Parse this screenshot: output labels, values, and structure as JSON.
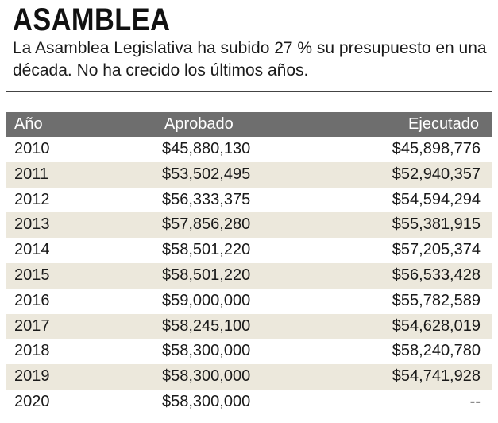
{
  "title": "ASAMBLEA",
  "subtitle": "La Asamblea Legislativa ha subido 27 % su presupuesto en una década. No ha crecido los últimos años.",
  "table": {
    "headers": [
      "Año",
      "Aprobado",
      "Ejecutado"
    ],
    "rows": [
      [
        "2010",
        "$45,880,130",
        "$45,898,776"
      ],
      [
        "2011",
        "$53,502,495",
        "$52,940,357"
      ],
      [
        "2012",
        "$56,333,375",
        "$54,594,294"
      ],
      [
        "2013",
        "$57,856,280",
        "$55,381,915"
      ],
      [
        "2014",
        "$58,501,220",
        "$57,205,374"
      ],
      [
        "2015",
        "$58,501,220",
        "$56,533,428"
      ],
      [
        "2016",
        "$59,000,000",
        "$55,782,589"
      ],
      [
        "2017",
        "$58,245,100",
        "$54,628,019"
      ],
      [
        "2018",
        "$58,300,000",
        "$58,240,780"
      ],
      [
        "2019",
        "$58,300,000",
        "$54,741,928"
      ],
      [
        "2020",
        "$58,300,000",
        "--"
      ]
    ]
  },
  "colors": {
    "header_bg": "#6e6e6e",
    "stripe_bg": "#ece8dc",
    "text": "#1a1a1a"
  }
}
